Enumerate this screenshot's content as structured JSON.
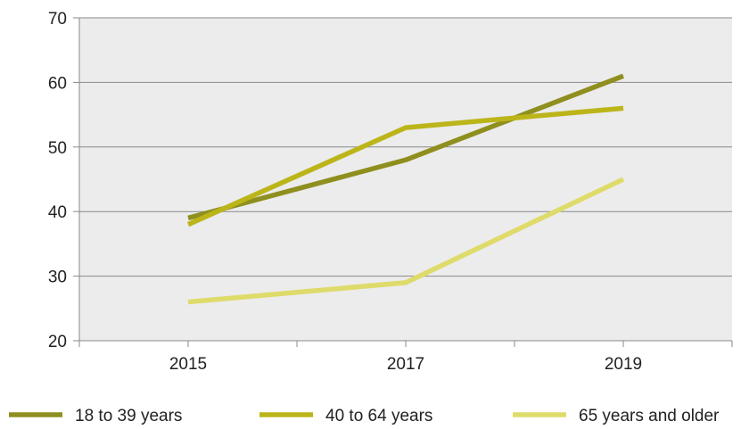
{
  "chart_data": {
    "type": "line",
    "x": [
      "2015",
      "2017",
      "2019"
    ],
    "xlim": [
      "2014",
      "2020"
    ],
    "ylim": [
      20,
      70
    ],
    "yticks": [
      "20",
      "30",
      "40",
      "50",
      "60",
      "70"
    ],
    "grid": "horizontal",
    "legend_position": "bottom",
    "series": [
      {
        "name": "18 to 39 years",
        "values": [
          39,
          48,
          61
        ],
        "color": "#8f8f1f"
      },
      {
        "name": "40 to 64 years",
        "values": [
          38,
          53,
          56
        ],
        "color": "#bcb51a"
      },
      {
        "name": "65 years and older",
        "values": [
          26,
          29,
          45
        ],
        "color": "#dedb6a"
      }
    ],
    "background_color": "#ececec"
  }
}
